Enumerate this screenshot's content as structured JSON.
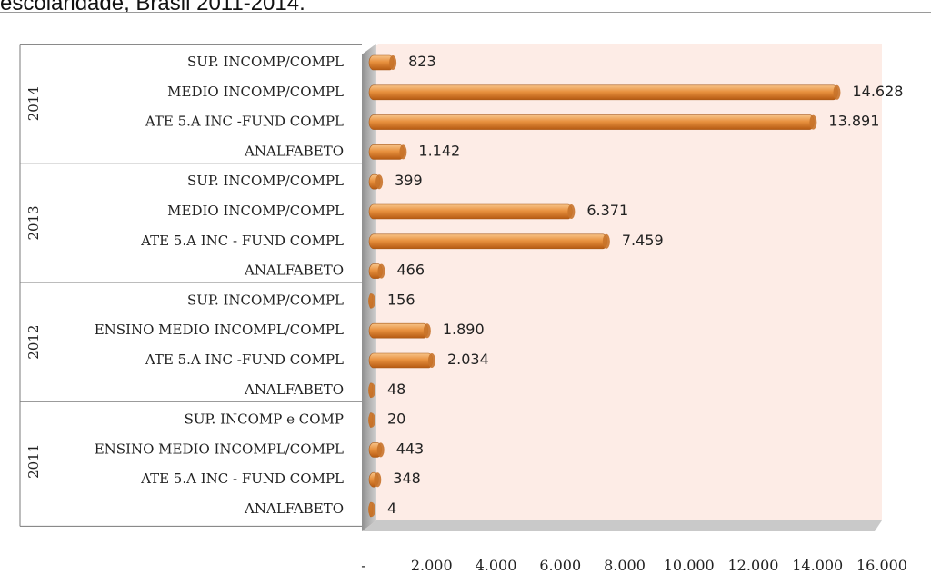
{
  "header": {
    "title_fragment": "escolaridade, Brasil 2011-2014."
  },
  "chart_data": {
    "type": "bar",
    "orientation": "horizontal",
    "groups": [
      {
        "year": "2014",
        "items": [
          {
            "label": "SUP. INCOMP/COMPL",
            "value": 823,
            "value_label": "823"
          },
          {
            "label": "MEDIO INCOMP/COMPL",
            "value": 14628,
            "value_label": "14.628"
          },
          {
            "label": "ATE 5.A INC -FUND COMPL",
            "value": 13891,
            "value_label": "13.891"
          },
          {
            "label": "ANALFABETO",
            "value": 1142,
            "value_label": "1.142"
          }
        ]
      },
      {
        "year": "2013",
        "items": [
          {
            "label": "SUP. INCOMP/COMPL",
            "value": 399,
            "value_label": "399"
          },
          {
            "label": "MEDIO INCOMP/COMPL",
            "value": 6371,
            "value_label": "6.371"
          },
          {
            "label": "ATE 5.A INC - FUND COMPL",
            "value": 7459,
            "value_label": "7.459"
          },
          {
            "label": "ANALFABETO",
            "value": 466,
            "value_label": "466"
          }
        ]
      },
      {
        "year": "2012",
        "items": [
          {
            "label": "SUP. INCOMP/COMPL",
            "value": 156,
            "value_label": "156"
          },
          {
            "label": "ENSINO MEDIO INCOMPL/COMPL",
            "value": 1890,
            "value_label": "1.890"
          },
          {
            "label": "ATE 5.A INC -FUND COMPL",
            "value": 2034,
            "value_label": "2.034"
          },
          {
            "label": "ANALFABETO",
            "value": 48,
            "value_label": "48"
          }
        ]
      },
      {
        "year": "2011",
        "items": [
          {
            "label": "SUP. INCOMP e COMP",
            "value": 20,
            "value_label": "20"
          },
          {
            "label": "ENSINO MEDIO INCOMPL/COMPL",
            "value": 443,
            "value_label": "443"
          },
          {
            "label": "ATE 5.A INC - FUND COMPL",
            "value": 348,
            "value_label": "348"
          },
          {
            "label": "ANALFABETO",
            "value": 4,
            "value_label": "4"
          }
        ]
      }
    ],
    "x_ticks": [
      "-",
      "2.000",
      "4.000",
      "6.000",
      "8.000",
      "10.000",
      "12.000",
      "14.000",
      "16.000"
    ],
    "xlim": [
      0,
      16000
    ],
    "grid": false,
    "legend": "none",
    "colors": {
      "bar_light": "#f7c48a",
      "bar_mid": "#e8913f",
      "bar_dark": "#b55a12",
      "plot_bg": "#fdece6",
      "wall": "#b0b0b0"
    }
  }
}
